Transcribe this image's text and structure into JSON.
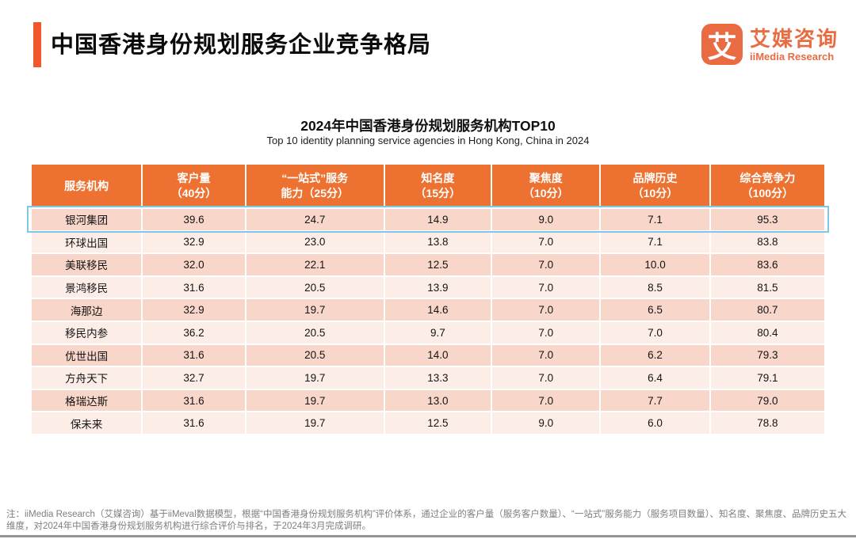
{
  "page": {
    "title": "中国香港身份规划服务企业竞争格局",
    "accent_color": "#F1582C",
    "background": "#FFFFFF"
  },
  "logo": {
    "icon_char": "艾",
    "name_cn": "艾媒咨询",
    "name_en": "iiMedia Research",
    "brand_color": "#E96B42"
  },
  "chart_data": {
    "type": "table",
    "title": "2024年中国香港身份规划服务机构TOP10",
    "subtitle": "Top 10 identity planning service agencies in Hong Kong, China in 2024",
    "columns": [
      "服务机构",
      "客户量\n（40分）",
      "“一站式”服务\n能力（25分）",
      "知名度\n（15分）",
      "聚焦度\n（10分）",
      "品牌历史\n（10分）",
      "综合竞争力\n（100分）"
    ],
    "rows": [
      {
        "name": "银河集团",
        "scores": [
          "39.6",
          "24.7",
          "14.9",
          "9.0",
          "7.1",
          "95.3"
        ]
      },
      {
        "name": "环球出国",
        "scores": [
          "32.9",
          "23.0",
          "13.8",
          "7.0",
          "7.1",
          "83.8"
        ]
      },
      {
        "name": "美联移民",
        "scores": [
          "32.0",
          "22.1",
          "12.5",
          "7.0",
          "10.0",
          "83.6"
        ]
      },
      {
        "name": "景鸿移民",
        "scores": [
          "31.6",
          "20.5",
          "13.9",
          "7.0",
          "8.5",
          "81.5"
        ]
      },
      {
        "name": "海那边",
        "scores": [
          "32.9",
          "19.7",
          "14.6",
          "7.0",
          "6.5",
          "80.7"
        ]
      },
      {
        "name": "移民内参",
        "scores": [
          "36.2",
          "20.5",
          "9.7",
          "7.0",
          "7.0",
          "80.4"
        ]
      },
      {
        "name": "优世出国",
        "scores": [
          "31.6",
          "20.5",
          "14.0",
          "7.0",
          "6.2",
          "79.3"
        ]
      },
      {
        "name": "方舟天下",
        "scores": [
          "32.7",
          "19.7",
          "13.3",
          "7.0",
          "6.4",
          "79.1"
        ]
      },
      {
        "name": "格瑞达斯",
        "scores": [
          "31.6",
          "19.7",
          "13.0",
          "7.0",
          "7.7",
          "79.0"
        ]
      },
      {
        "name": "保未来",
        "scores": [
          "31.6",
          "19.7",
          "12.5",
          "9.0",
          "6.0",
          "78.8"
        ]
      }
    ],
    "highlighted_row": "银河集团",
    "highlight_color": "#7FC6E9",
    "header_bg": "#ED7231",
    "row_bg_dark": "#F8D6CA",
    "row_bg_light": "#FDEDE7"
  },
  "footnote": "注：iiMedia Research（艾媒咨询）基于iiMeval数据模型，根据“中国香港身份规划服务机构”评价体系，通过企业的客户量（服务客户数量）、“一站式”服务能力（服务项目数量）、知名度、聚焦度、品牌历史五大维度，对2024年中国香港身份规划服务机构进行综合评价与排名，于2024年3月完成调研。"
}
